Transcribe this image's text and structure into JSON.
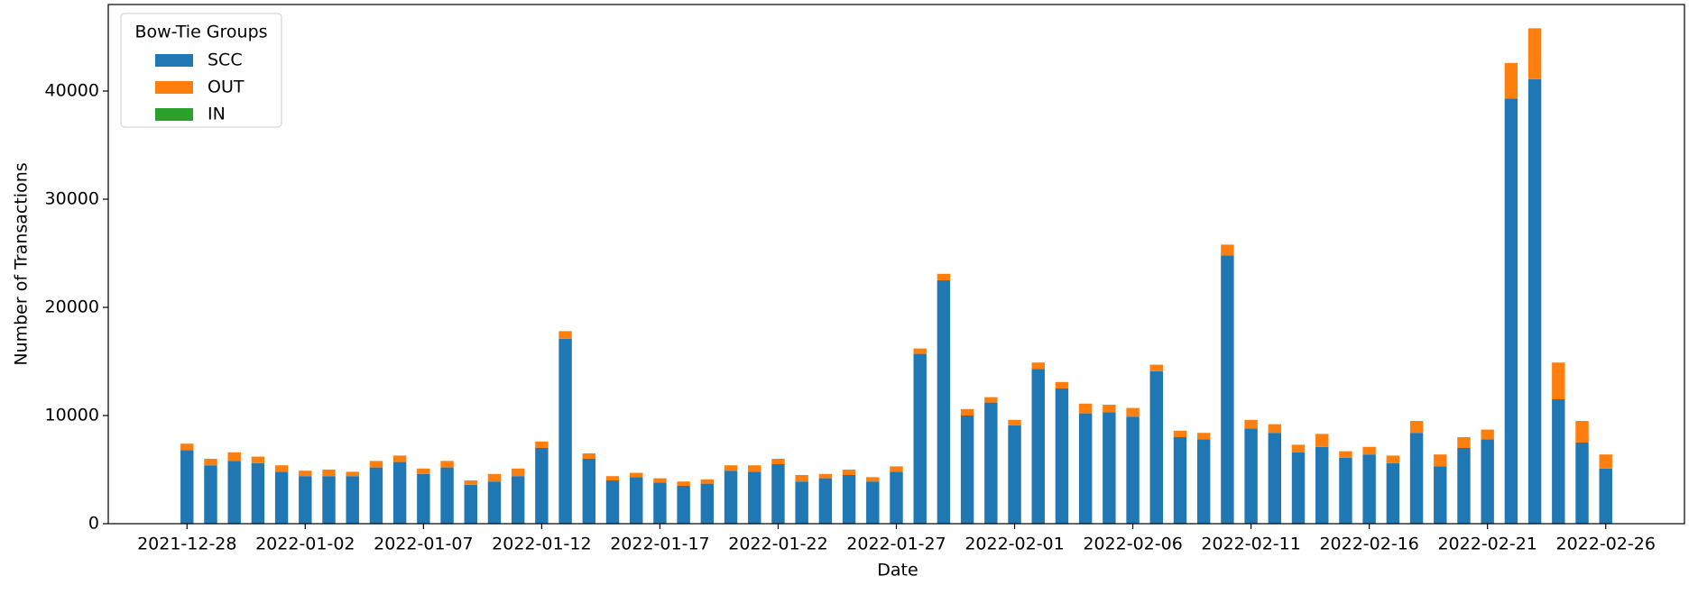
{
  "chart_data": {
    "type": "stacked-bar",
    "x_label": "Date",
    "y_label": "Number of Transactions",
    "x": [
      "2021-12-28",
      "2021-12-29",
      "2021-12-30",
      "2021-12-31",
      "2022-01-01",
      "2022-01-02",
      "2022-01-03",
      "2022-01-04",
      "2022-01-05",
      "2022-01-06",
      "2022-01-07",
      "2022-01-08",
      "2022-01-09",
      "2022-01-10",
      "2022-01-11",
      "2022-01-12",
      "2022-01-13",
      "2022-01-14",
      "2022-01-15",
      "2022-01-16",
      "2022-01-17",
      "2022-01-18",
      "2022-01-19",
      "2022-01-20",
      "2022-01-21",
      "2022-01-22",
      "2022-01-23",
      "2022-01-24",
      "2022-01-25",
      "2022-01-26",
      "2022-01-27",
      "2022-01-28",
      "2022-01-29",
      "2022-01-30",
      "2022-01-31",
      "2022-02-01",
      "2022-02-02",
      "2022-02-03",
      "2022-02-04",
      "2022-02-05",
      "2022-02-06",
      "2022-02-07",
      "2022-02-08",
      "2022-02-09",
      "2022-02-10",
      "2022-02-11",
      "2022-02-12",
      "2022-02-13",
      "2022-02-14",
      "2022-02-15",
      "2022-02-16",
      "2022-02-17",
      "2022-02-18",
      "2022-02-19",
      "2022-02-20",
      "2022-02-21",
      "2022-02-22",
      "2022-02-23",
      "2022-02-24",
      "2022-02-25",
      "2022-02-26"
    ],
    "series": [
      {
        "name": "SCC",
        "color": "#1f77b4",
        "values": [
          6800,
          5400,
          5800,
          5600,
          4800,
          4400,
          4400,
          4400,
          5200,
          5700,
          4600,
          5200,
          3600,
          3900,
          4400,
          7000,
          17100,
          6000,
          4000,
          4300,
          3800,
          3500,
          3700,
          4900,
          4800,
          5500,
          3900,
          4200,
          4500,
          3900,
          4800,
          15700,
          22500,
          10000,
          11200,
          9100,
          14300,
          12500,
          10200,
          10300,
          9900,
          14100,
          8000,
          7800,
          24800,
          8800,
          8400,
          6600,
          7100,
          6100,
          6400,
          5600,
          8400,
          5300,
          7000,
          7800,
          39300,
          41100,
          11500,
          7500,
          5100
        ]
      },
      {
        "name": "OUT",
        "color": "#ff7f0e",
        "values": [
          600,
          600,
          800,
          600,
          600,
          500,
          600,
          400,
          600,
          600,
          500,
          600,
          400,
          700,
          700,
          600,
          700,
          500,
          400,
          400,
          400,
          400,
          400,
          500,
          600,
          500,
          600,
          400,
          500,
          400,
          500,
          500,
          600,
          600,
          500,
          500,
          600,
          600,
          900,
          700,
          800,
          600,
          600,
          600,
          1000,
          800,
          800,
          700,
          1200,
          600,
          700,
          700,
          1100,
          1100,
          1000,
          900,
          3300,
          4700,
          3400,
          2000,
          1300
        ]
      },
      {
        "name": "IN",
        "color": "#2ca02c",
        "values": [
          0,
          0,
          0,
          0,
          0,
          0,
          0,
          0,
          0,
          0,
          0,
          0,
          0,
          0,
          0,
          0,
          0,
          0,
          0,
          0,
          0,
          0,
          0,
          0,
          0,
          0,
          0,
          0,
          0,
          0,
          0,
          0,
          0,
          0,
          0,
          0,
          0,
          0,
          0,
          0,
          0,
          0,
          0,
          0,
          0,
          0,
          0,
          0,
          0,
          0,
          0,
          0,
          0,
          0,
          0,
          0,
          0,
          0,
          0,
          0,
          0
        ]
      }
    ],
    "xticks": [
      "2021-12-28",
      "2022-01-02",
      "2022-01-07",
      "2022-01-12",
      "2022-01-17",
      "2022-01-22",
      "2022-01-27",
      "2022-02-01",
      "2022-02-06",
      "2022-02-11",
      "2022-02-16",
      "2022-02-21",
      "2022-02-26"
    ],
    "ylim": [
      0,
      48000
    ],
    "yticks": [
      0,
      10000,
      20000,
      30000,
      40000
    ],
    "legend_title": "Bow-Tie Groups",
    "legend": "upper left",
    "grid": false
  }
}
